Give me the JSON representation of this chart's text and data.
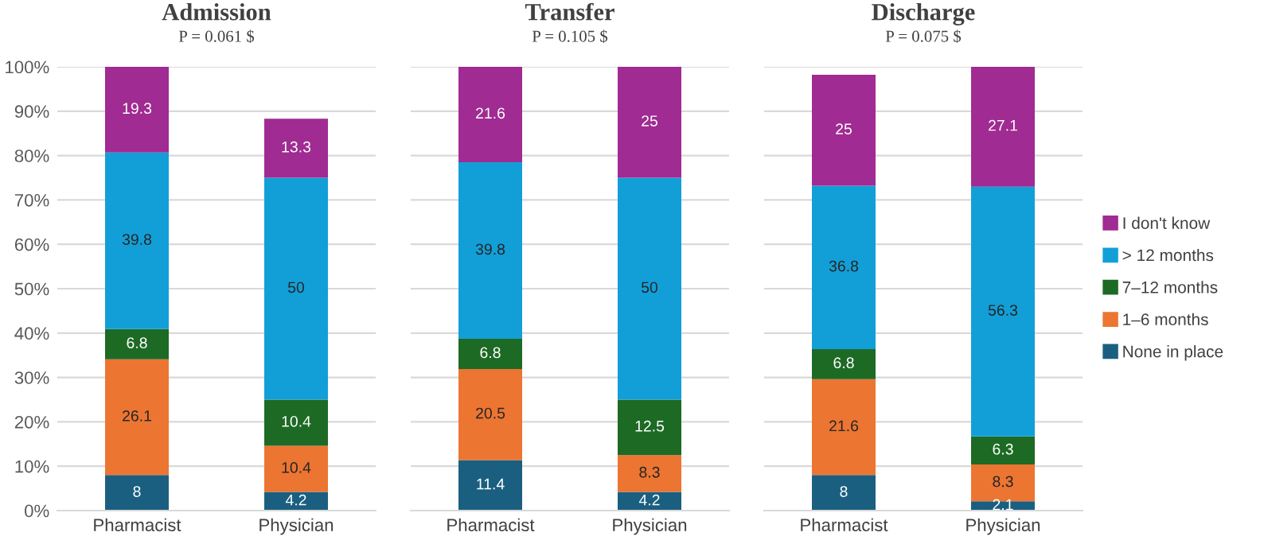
{
  "chart_data": [
    {
      "type": "bar",
      "title": "Admission",
      "subtitle": "P = 0.061 $",
      "categories": [
        "Pharmacist",
        "Physician"
      ],
      "stacked": true,
      "data_labels": true,
      "grid": "y",
      "ylim": [
        0,
        100
      ],
      "yticks": [
        {
          "value": 0,
          "label": "0%"
        },
        {
          "value": 10,
          "label": "10%"
        },
        {
          "value": 20,
          "label": "20%"
        },
        {
          "value": 30,
          "label": "30%"
        },
        {
          "value": 40,
          "label": "40%"
        },
        {
          "value": 50,
          "label": "50%"
        },
        {
          "value": 60,
          "label": "60%"
        },
        {
          "value": 70,
          "label": "70%"
        },
        {
          "value": 80,
          "label": "80%"
        },
        {
          "value": 90,
          "label": "90%"
        },
        {
          "value": 100,
          "label": "100%"
        }
      ],
      "series": [
        {
          "color": "#1b5f80",
          "values": [
            8,
            4.2
          ]
        },
        {
          "color": "#ec7532",
          "values": [
            26.1,
            10.4
          ]
        },
        {
          "color": "#1d6a25",
          "values": [
            6.8,
            10.4
          ]
        },
        {
          "color": "#129fd8",
          "values": [
            39.8,
            50
          ]
        },
        {
          "color": "#a02b92",
          "values": [
            19.3,
            13.3
          ]
        }
      ]
    },
    {
      "type": "bar",
      "title": "Transfer",
      "subtitle": "P = 0.105 $",
      "categories": [
        "Pharmacist",
        "Physician"
      ],
      "stacked": true,
      "data_labels": true,
      "grid": "y",
      "ylim": [
        0,
        100
      ],
      "tick_labels": "x",
      "yticks": [
        0,
        10,
        20,
        30,
        40,
        50,
        60,
        70,
        80,
        90,
        100
      ],
      "series": [
        {
          "color": "#1b5f80",
          "values": [
            11.4,
            4.2
          ]
        },
        {
          "color": "#ec7532",
          "values": [
            20.5,
            8.3
          ]
        },
        {
          "color": "#1d6a25",
          "values": [
            6.8,
            12.5
          ]
        },
        {
          "color": "#129fd8",
          "values": [
            39.8,
            50
          ]
        },
        {
          "color": "#a02b92",
          "values": [
            21.6,
            25
          ]
        }
      ]
    },
    {
      "type": "bar",
      "title": "Discharge",
      "subtitle": "P = 0.075 $",
      "categories": [
        "Pharmacist",
        "Physician"
      ],
      "stacked": true,
      "data_labels": true,
      "grid": "y",
      "ylim": [
        0,
        100
      ],
      "tick_labels": "x",
      "legend": "right",
      "yticks": [
        0,
        10,
        20,
        30,
        40,
        50,
        60,
        70,
        80,
        90,
        100
      ],
      "series": [
        {
          "name": "None in place",
          "color": "#1b5f80",
          "values": [
            8,
            2.1
          ]
        },
        {
          "name": "1–6 months",
          "color": "#ec7532",
          "values": [
            21.6,
            8.3
          ]
        },
        {
          "name": "7–12 months",
          "color": "#1d6a25",
          "values": [
            6.8,
            6.3
          ]
        },
        {
          "name": "> 12 months",
          "color": "#129fd8",
          "values": [
            36.8,
            56.3
          ]
        },
        {
          "name": "I don't know",
          "color": "#a02b92",
          "values": [
            25,
            27.1
          ]
        }
      ]
    }
  ]
}
